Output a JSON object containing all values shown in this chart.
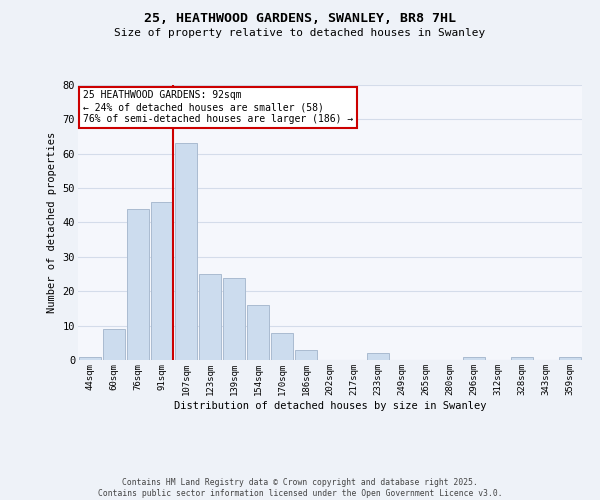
{
  "title1": "25, HEATHWOOD GARDENS, SWANLEY, BR8 7HL",
  "title2": "Size of property relative to detached houses in Swanley",
  "xlabel": "Distribution of detached houses by size in Swanley",
  "ylabel": "Number of detached properties",
  "categories": [
    "44sqm",
    "60sqm",
    "76sqm",
    "91sqm",
    "107sqm",
    "123sqm",
    "139sqm",
    "154sqm",
    "170sqm",
    "186sqm",
    "202sqm",
    "217sqm",
    "233sqm",
    "249sqm",
    "265sqm",
    "280sqm",
    "296sqm",
    "312sqm",
    "328sqm",
    "343sqm",
    "359sqm"
  ],
  "values": [
    1,
    9,
    44,
    46,
    63,
    25,
    24,
    16,
    8,
    3,
    0,
    0,
    2,
    0,
    0,
    0,
    1,
    0,
    1,
    0,
    1
  ],
  "bar_color": "#ccdcee",
  "bar_edge_color": "#aabbd0",
  "vline_index": 3,
  "vline_color": "#cc0000",
  "ylim": [
    0,
    80
  ],
  "yticks": [
    0,
    10,
    20,
    30,
    40,
    50,
    60,
    70,
    80
  ],
  "annotation_line1": "25 HEATHWOOD GARDENS: 92sqm",
  "annotation_line2": "← 24% of detached houses are smaller (58)",
  "annotation_line3": "76% of semi-detached houses are larger (186) →",
  "footer1": "Contains HM Land Registry data © Crown copyright and database right 2025.",
  "footer2": "Contains public sector information licensed under the Open Government Licence v3.0.",
  "bg_color": "#eef2f8",
  "plot_bg_color": "#f5f7fc",
  "grid_color": "#d4dcea"
}
